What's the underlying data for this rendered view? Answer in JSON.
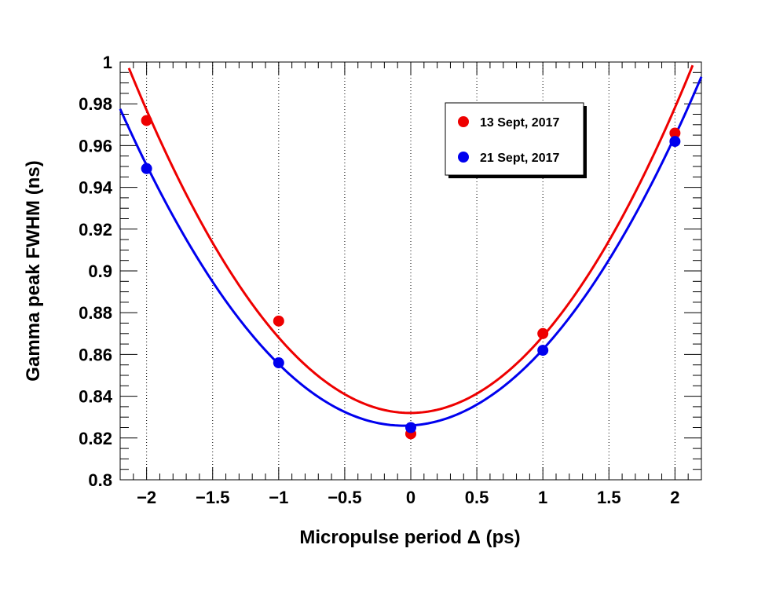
{
  "chart_data": {
    "type": "scatter",
    "title": "",
    "xlabel": "Micropulse period Δ (ps)",
    "ylabel": "Gamma peak FWHM (ns)",
    "xlim": [
      -2.2,
      2.2
    ],
    "ylim": [
      0.8,
      1.0
    ],
    "x_ticks": [
      -2,
      -1.5,
      -1,
      -0.5,
      0,
      0.5,
      1,
      1.5,
      2
    ],
    "x_tick_labels": [
      "−2",
      "−1.5",
      "−1",
      "−0.5",
      "0",
      "0.5",
      "1",
      "1.5",
      "2"
    ],
    "y_ticks": [
      0.8,
      0.82,
      0.84,
      0.86,
      0.88,
      0.9,
      0.92,
      0.94,
      0.96,
      0.98,
      1.0
    ],
    "y_tick_labels": [
      "0.8",
      "0.82",
      "0.84",
      "0.86",
      "0.88",
      "0.9",
      "0.92",
      "0.94",
      "0.96",
      "0.98",
      "1"
    ],
    "grid": "vertical dotted",
    "legend_position": "top-right",
    "series": [
      {
        "name": "13 Sept, 2017",
        "color": "#ee0000",
        "x": [
          -2,
          -1,
          0,
          1,
          2
        ],
        "values": [
          0.972,
          0.876,
          0.822,
          0.87,
          0.966
        ],
        "fit": {
          "type": "quadratic",
          "a": 0.0364,
          "b": 0.0003,
          "c": 0.832,
          "x_range": [
            -2.2,
            2.2
          ]
        }
      },
      {
        "name": "21 Sept, 2017",
        "color": "#0000ee",
        "x": [
          -2,
          -1,
          0,
          1,
          2
        ],
        "values": [
          0.949,
          0.856,
          0.825,
          0.862,
          0.962
        ],
        "fit": {
          "type": "quadratic",
          "a": 0.0329,
          "b": 0.0035,
          "c": 0.826,
          "x_range": [
            -2.2,
            2.2
          ]
        }
      }
    ]
  }
}
